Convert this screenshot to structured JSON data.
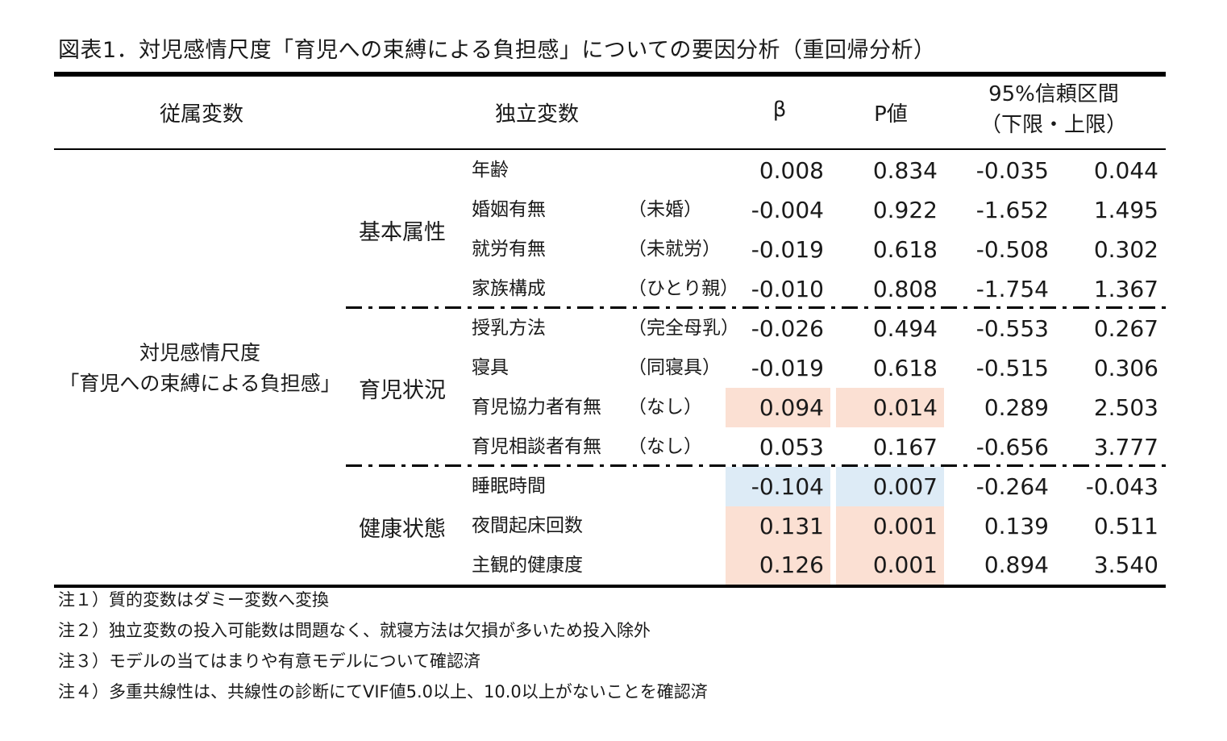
{
  "title": "図表1．対児感情尺度「育児への束縛による負担感」についての要因分析（重回帰分析）",
  "headers": {
    "dependent": "従属変数",
    "independent": "独立変数",
    "beta": "β",
    "p": "P値",
    "ci_line1": "95%信頼区間",
    "ci_line2": "（下限・上限）"
  },
  "dependent_line1": "対児感情尺度",
  "dependent_line2": "「育児への束縛による負担感」",
  "groups": [
    "基本属性",
    "育児状況",
    "健康状態"
  ],
  "rows": [
    {
      "var": "年齢",
      "ref": "",
      "beta": "0.008",
      "p": "0.834",
      "lo": "-0.035",
      "hi": "0.044",
      "hl": ""
    },
    {
      "var": "婚姻有無",
      "ref": "（未婚）",
      "beta": "-0.004",
      "p": "0.922",
      "lo": "-1.652",
      "hi": "1.495",
      "hl": ""
    },
    {
      "var": "就労有無",
      "ref": "（未就労）",
      "beta": "-0.019",
      "p": "0.618",
      "lo": "-0.508",
      "hi": "0.302",
      "hl": ""
    },
    {
      "var": "家族構成",
      "ref": "（ひとり親）",
      "beta": "-0.010",
      "p": "0.808",
      "lo": "-1.754",
      "hi": "1.367",
      "hl": ""
    },
    {
      "var": "授乳方法",
      "ref": "（完全母乳）",
      "beta": "-0.026",
      "p": "0.494",
      "lo": "-0.553",
      "hi": "0.267",
      "hl": ""
    },
    {
      "var": "寝具",
      "ref": "（同寝具）",
      "beta": "-0.019",
      "p": "0.618",
      "lo": "-0.515",
      "hi": "0.306",
      "hl": ""
    },
    {
      "var": "育児協力者有無",
      "ref": "（なし）",
      "beta": "0.094",
      "p": "0.014",
      "lo": "0.289",
      "hi": "2.503",
      "hl": "pos"
    },
    {
      "var": "育児相談者有無",
      "ref": "（なし）",
      "beta": "0.053",
      "p": "0.167",
      "lo": "-0.656",
      "hi": "3.777",
      "hl": ""
    },
    {
      "var": "睡眠時間",
      "ref": "",
      "beta": "-0.104",
      "p": "0.007",
      "lo": "-0.264",
      "hi": "-0.043",
      "hl": "neg"
    },
    {
      "var": "夜間起床回数",
      "ref": "",
      "beta": "0.131",
      "p": "0.001",
      "lo": "0.139",
      "hi": "0.511",
      "hl": "pos"
    },
    {
      "var": "主観的健康度",
      "ref": "",
      "beta": "0.126",
      "p": "0.001",
      "lo": "0.894",
      "hi": "3.540",
      "hl": "pos"
    }
  ],
  "colors": {
    "highlight_positive": "#fbe0d3",
    "highlight_negative": "#ddebf6"
  },
  "notes": [
    "注１）質的変数はダミー変数へ変換",
    "注２）独立変数の投入可能数は問題なく、就寝方法は欠損が多いため投入除外",
    "注３）モデルの当てはまりや有意モデルについて確認済",
    "注４）多重共線性は、共線性の診断にてVIF値5.0以上、10.0以上がないことを確認済"
  ]
}
